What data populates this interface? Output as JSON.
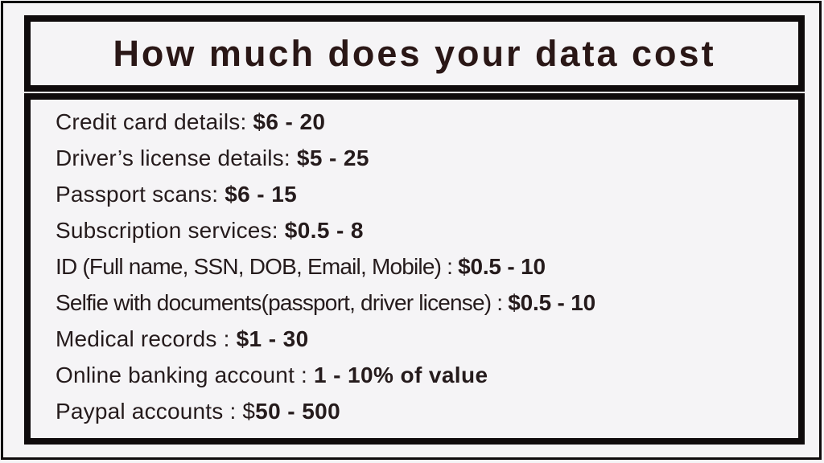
{
  "theme": {
    "bg": "#f5f4f6",
    "frame": "#0f0b0c",
    "text": "#251b1c",
    "title": "#2a1716"
  },
  "header": {
    "title": "How much does your data cost"
  },
  "items": [
    {
      "label": "Credit card details: ",
      "value": "$6 - 20"
    },
    {
      "label": "Driver’s license details: ",
      "value": "$5 - 25"
    },
    {
      "label": "Passport scans: ",
      "value": "$6 - 15"
    },
    {
      "label": "Subscription services: ",
      "value": "$0.5 - 8"
    },
    {
      "label": "ID (Full name, SSN, DOB, Email, Mobile) : ",
      "value": "$0.5 - 10"
    },
    {
      "label": "Selfie with documents(passport, driver license) : ",
      "value": "$0.5 - 10"
    },
    {
      "label": "Medical records : ",
      "value": "$1 - 30"
    },
    {
      "label": "Online banking account : ",
      "value": "1 - 10% of value"
    },
    {
      "label": "Paypal accounts : $",
      "value": "50 - 500"
    }
  ]
}
